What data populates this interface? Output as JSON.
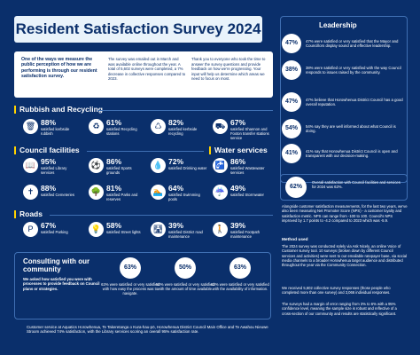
{
  "header": {
    "title": "Resident Satisfaction Survey 2024"
  },
  "intro": {
    "lead": "One of the ways we measure the public perception of how we are performing is through our resident satisfaction survey.",
    "col2": "The survey was emailed out in March and was available online throughout the year. A total of 5,602 surveys were completed, a 7% decrease in collective responses compared to 2023.",
    "col3": "Thank you to everyone who took the time to answer the survey questions and provide feedback on how we're progressing. Your input will help us determine which areas we need to focus on most."
  },
  "sections": {
    "rubbish": "Rubbish and Recycling",
    "council": "Council facilities",
    "water": "Water services",
    "roads": "Roads"
  },
  "rubbish_stats": [
    {
      "pct": "88%",
      "label": "satisfied kerbside rubbish",
      "icon": "bin-icon"
    },
    {
      "pct": "61%",
      "label": "satisfied Recycling stations",
      "icon": "recycle-icon"
    },
    {
      "pct": "82%",
      "label": "satisfied kerbside recycling",
      "icon": "recycling-bin-icon"
    },
    {
      "pct": "67%",
      "label": "satisfied Shannon and Foxton transfer stations service",
      "icon": "truck-icon"
    }
  ],
  "council_stats": [
    {
      "pct": "95%",
      "label": "satisfied Library services",
      "icon": "book-icon"
    },
    {
      "pct": "86%",
      "label": "satisfied Sports grounds",
      "icon": "sports-icon"
    },
    {
      "pct": "88%",
      "label": "satisfied Cemeteries",
      "icon": "cemetery-icon"
    },
    {
      "pct": "81%",
      "label": "satisfied Parks and reserves",
      "icon": "tree-icon"
    }
  ],
  "water_stats": [
    {
      "pct": "72%",
      "label": "satisfied Drinking water",
      "icon": "water-drop-icon"
    },
    {
      "pct": "86%",
      "label": "satisfied Wastewater services",
      "icon": "wastewater-icon"
    },
    {
      "pct": "64%",
      "label": "satisfied Swimming pools",
      "icon": "swim-icon"
    },
    {
      "pct": "49%",
      "label": "satisfied Stormwater",
      "icon": "stormwater-icon"
    }
  ],
  "roads_stats": [
    {
      "pct": "67%",
      "label": "satisfied Parking",
      "icon": "parking-icon"
    },
    {
      "pct": "58%",
      "label": "satisfied Street lights",
      "icon": "streetlight-icon"
    },
    {
      "pct": "39%",
      "label": "satisfied District road maintenance",
      "icon": "road-icon"
    },
    {
      "pct": "39%",
      "label": "satisfied Footpath maintenance",
      "icon": "footpath-icon"
    }
  ],
  "leadership": {
    "title": "Leadership",
    "items": [
      {
        "pct": "47%",
        "text": "47% were satisfied or very satisfied that the Mayor and Councillors display sound and effective leadership."
      },
      {
        "pct": "38%",
        "text": "38% were satisfied or very satisfied with the way Council responds to issues raised by the community."
      },
      {
        "pct": "47%",
        "text": "47% believe that Horowhenua District Council has a good overall reputation."
      },
      {
        "pct": "54%",
        "text": "54% say they are well informed about what Council is doing."
      },
      {
        "pct": "41%",
        "text": "41% say that Horowhenua District Council is open and transparent with our decision-making."
      }
    ]
  },
  "overall": {
    "pct": "62%",
    "text": "Overall satisfaction with Council facilities and services for 2024 was 62%."
  },
  "nps_text": "Alongside customer satisfaction measurements, for the last two years, we've also been measuring Net Promoter Score (NPS) - a customer loyalty and satisfaction metric. NPS can range from -100 to 100. Council's NPS improved by 1.7 points to -4.2 compared to 2023 which was -5.9.",
  "method": {
    "title": "Method used",
    "text1": "The 2024 survey was conducted solely via Ask Nicely, an online Voice of Customer survey tool. 10 surveys (broken down by different Council services and activities) were sent to our emailable ratepayer base, via social media channels to a broader Horowhenua target audience and distributed throughout the year via the Community Connection.",
    "text2": "We received 5,602 collective survey responses (those people who completed more than one survey) and 3,066 individual responses.",
    "text3": "The surveys had a margin of error ranging from 3% to 6% with a 95% confidence level, meaning the sample size is robust and reflective of a cross-section of our community and results are statistically significant."
  },
  "consult": {
    "title": "Consulting with our community",
    "subtitle": "We asked how satisfied you were with processes to provide feedback on Council plans or strategies.",
    "items": [
      {
        "pct": "63%",
        "text": "63% were satisfied or very satisfied with how easy the process was to navigate."
      },
      {
        "pct": "50%",
        "text": "50% were satisfied or very satisfied with the amount of time available."
      },
      {
        "pct": "63%",
        "text": "63% were satisfied or very satisfied with the availability of information."
      }
    ]
  },
  "footer": "Customer service at Aquatics Horowhenua, Te Takeretanga o Kura-hau-pō, Horowhenua District Council Main Office and Te Awahou Nieuwe Stroom achieved 74% satisfaction, with the Library services scoring an overall 95% satisfaction rate."
}
